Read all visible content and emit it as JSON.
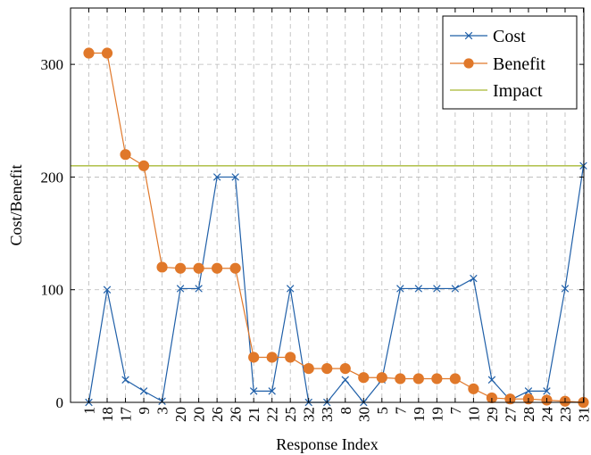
{
  "chart_data": {
    "type": "line",
    "xlabel": "Response Index",
    "ylabel": "Cost/Benefit",
    "ylim": [
      0,
      350
    ],
    "yticks": [
      0,
      100,
      200,
      300
    ],
    "categories": [
      "1",
      "18",
      "17",
      "9",
      "3",
      "20",
      "20",
      "26",
      "26",
      "21",
      "22",
      "25",
      "32",
      "33",
      "8",
      "30",
      "5",
      "7",
      "19",
      "19",
      "7",
      "10",
      "29",
      "27",
      "28",
      "24",
      "23",
      "31"
    ],
    "grid": true,
    "legend_position": "top-right",
    "series": [
      {
        "name": "Cost",
        "color": "#1f5fa8",
        "marker": "cross",
        "values": [
          0,
          100,
          20,
          10,
          1,
          101,
          101,
          200,
          200,
          10,
          10,
          101,
          0,
          0,
          20,
          0,
          20,
          101,
          101,
          101,
          101,
          110,
          20,
          2,
          10,
          10,
          101,
          210
        ]
      },
      {
        "name": "Benefit",
        "color": "#e0782a",
        "marker": "circle",
        "values": [
          310,
          310,
          220,
          210,
          120,
          119,
          119,
          119,
          119,
          40,
          40,
          40,
          30,
          30,
          30,
          22,
          22,
          21,
          21,
          21,
          21,
          12,
          4,
          3,
          3,
          2,
          1,
          0
        ]
      },
      {
        "name": "Impact",
        "color": "#b5c454",
        "marker": "none",
        "constant": 210
      }
    ]
  }
}
